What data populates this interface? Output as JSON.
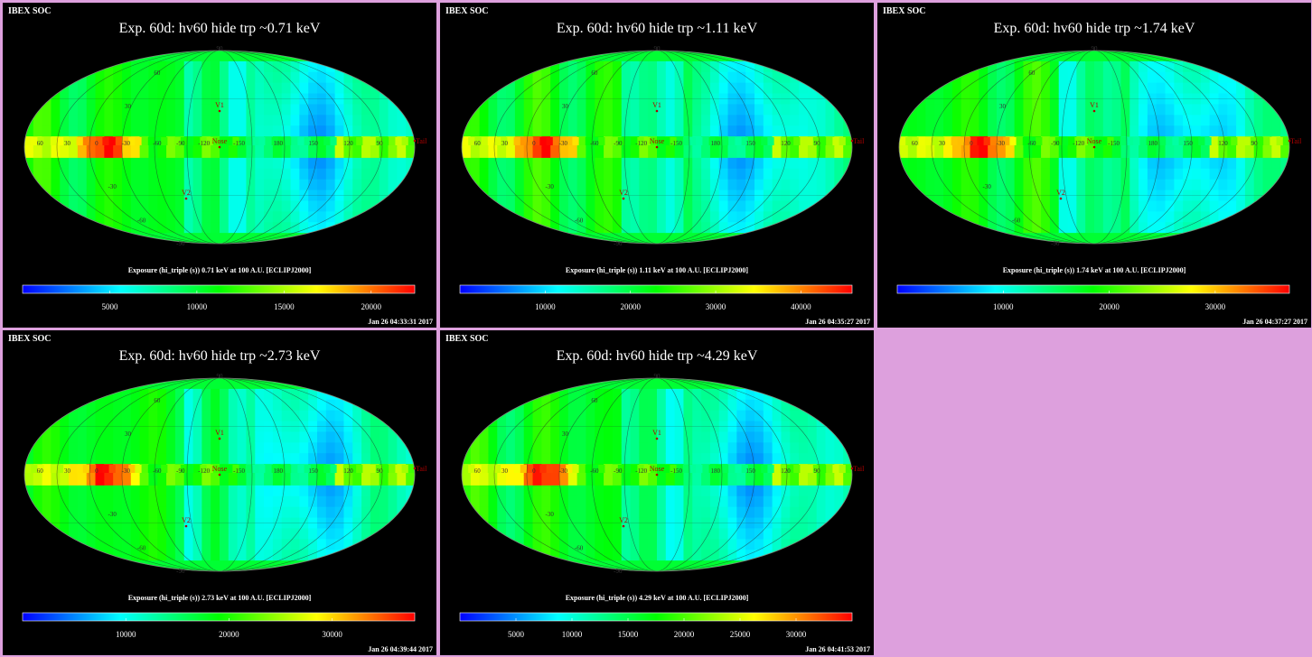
{
  "page": {
    "background": "#dda0dd"
  },
  "panels": [
    {
      "brand": "IBEX SOC",
      "title": "Exp.   60d: hv60 hide trp ~0.71 keV",
      "caption": "Exposure (hi_triple (s))  0.71 keV at 100 A.U. [ECLIPJ2000]",
      "colorbar": {
        "min": 0,
        "max": 22500,
        "ticks": [
          "5000",
          "10000",
          "15000",
          "20000"
        ],
        "tick_values": [
          5000,
          10000,
          15000,
          20000
        ]
      },
      "timestamp": "Jan 26 04:33:31 2017"
    },
    {
      "brand": "IBEX SOC",
      "title": "Exp.   60d: hv60 hide trp ~1.11 keV",
      "caption": "Exposure (hi_triple (s))  1.11 keV at 100 A.U. [ECLIPJ2000]",
      "colorbar": {
        "min": 0,
        "max": 46000,
        "ticks": [
          "10000",
          "20000",
          "30000",
          "40000"
        ],
        "tick_values": [
          10000,
          20000,
          30000,
          40000
        ]
      },
      "timestamp": "Jan 26 04:35:27 2017"
    },
    {
      "brand": "IBEX SOC",
      "title": "Exp.   60d: hv60 hide trp ~1.74 keV",
      "caption": "Exposure (hi_triple (s))  1.74 keV at 100 A.U. [ECLIPJ2000]",
      "colorbar": {
        "min": 0,
        "max": 37000,
        "ticks": [
          "10000",
          "20000",
          "30000"
        ],
        "tick_values": [
          10000,
          20000,
          30000
        ]
      },
      "timestamp": "Jan 26 04:37:27 2017"
    },
    {
      "brand": "IBEX SOC",
      "title": "Exp.   60d: hv60 hide trp ~2.73 keV",
      "caption": "Exposure (hi_triple (s))  2.73 keV at 100 A.U. [ECLIPJ2000]",
      "colorbar": {
        "min": 0,
        "max": 38000,
        "ticks": [
          "10000",
          "20000",
          "30000"
        ],
        "tick_values": [
          10000,
          20000,
          30000
        ]
      },
      "timestamp": "Jan 26 04:39:44 2017"
    },
    {
      "brand": "IBEX SOC",
      "title": "Exp.   60d: hv60 hide trp ~4.29 keV",
      "caption": "Exposure (hi_triple (s))  4.29 keV at 100 A.U. [ECLIPJ2000]",
      "colorbar": {
        "min": 0,
        "max": 35000,
        "ticks": [
          "5000",
          "10000",
          "15000",
          "20000",
          "25000",
          "30000"
        ],
        "tick_values": [
          5000,
          10000,
          15000,
          20000,
          25000,
          30000
        ]
      },
      "timestamp": "Jan 26 04:41:53 2017"
    }
  ],
  "map_labels": {
    "meridians": [
      "60",
      "30",
      "0",
      "-30",
      "-60",
      "-90",
      "-120",
      "-150",
      "180",
      "150",
      "120",
      "90"
    ],
    "latitudes": [
      "60",
      "30",
      "-30",
      "-60",
      "-90",
      "90"
    ],
    "markers": {
      "v1": "V1",
      "v2": "V2",
      "nose": "Nose",
      "tail": "Tail"
    }
  },
  "colormap": [
    "#0000ff",
    "#00ffff",
    "#00ff00",
    "#ffff00",
    "#ff0000"
  ]
}
